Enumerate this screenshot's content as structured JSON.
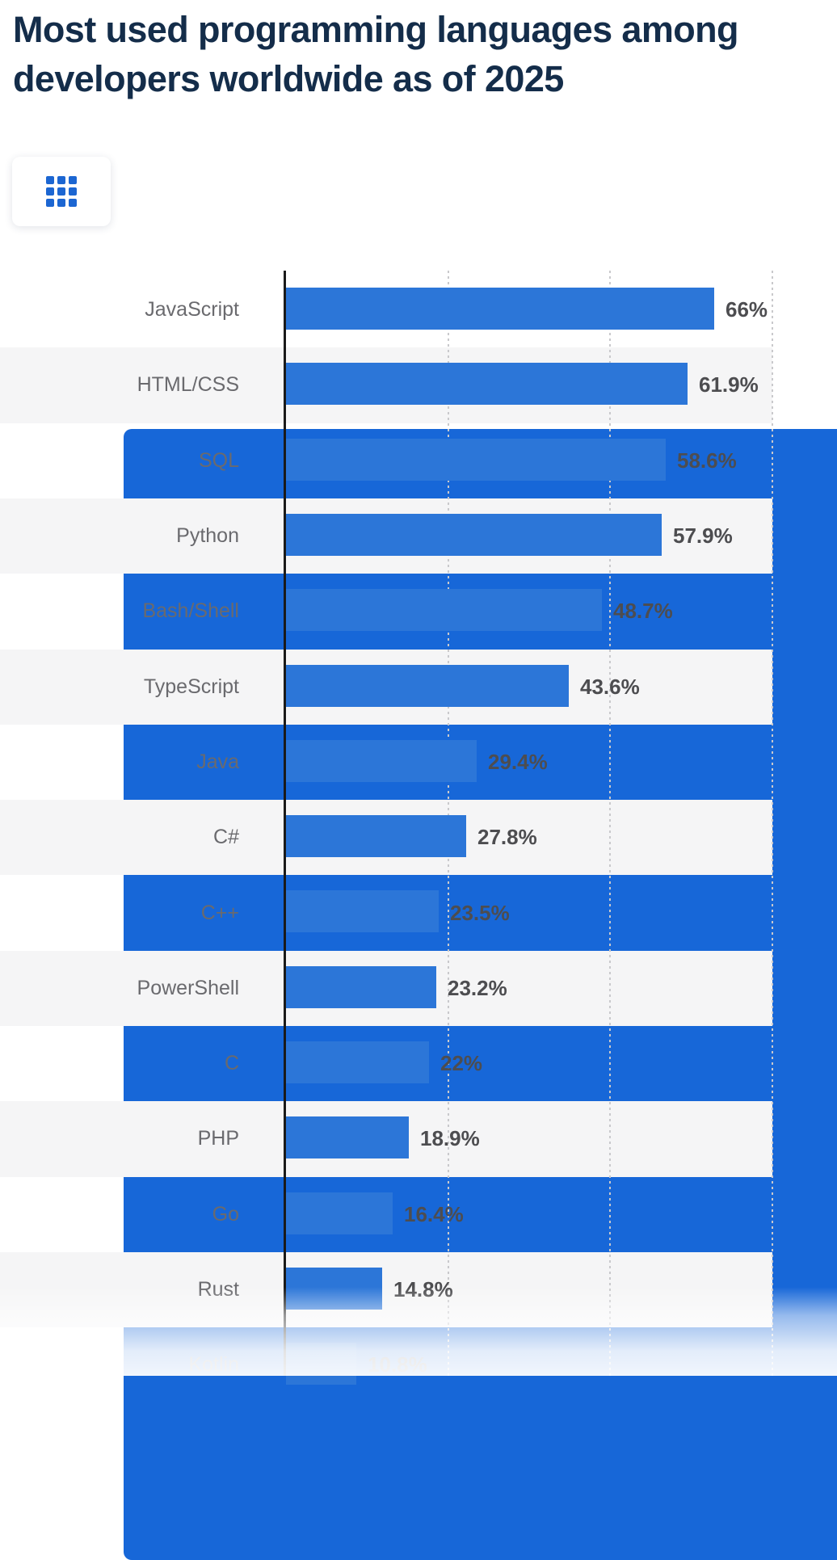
{
  "page": {
    "title": "Most used programming languages among developers worldwide as of 2025"
  },
  "toolbar": {
    "table_view_button": {
      "icon": "grid-icon",
      "active": false
    },
    "chart_view_button": {
      "icon": "bar-chart-icon",
      "active": true
    }
  },
  "chart_data": {
    "type": "bar",
    "orientation": "horizontal",
    "title": "Most used programming languages among developers worldwide as of 2025",
    "categories": [
      "JavaScript",
      "HTML/CSS",
      "SQL",
      "Python",
      "Bash/Shell",
      "TypeScript",
      "Java",
      "C#",
      "C++",
      "PowerShell",
      "C",
      "PHP",
      "Go",
      "Rust",
      "Kotlin"
    ],
    "values": [
      66,
      61.9,
      58.6,
      57.9,
      48.7,
      43.6,
      29.4,
      27.8,
      23.5,
      23.2,
      22,
      18.9,
      16.4,
      14.8,
      10.8
    ],
    "value_labels": [
      "66%",
      "61.9%",
      "58.6%",
      "57.9%",
      "48.7%",
      "43.6%",
      "29.4%",
      "27.8%",
      "23.5%",
      "23.2%",
      "22%",
      "18.9%",
      "16.4%",
      "14.8%",
      "10.8%"
    ],
    "unit": "%",
    "xlim": [
      0,
      75
    ],
    "gridlines_percent": [
      25,
      50,
      75
    ],
    "gridline_style": "dotted",
    "zebra_striping": true,
    "last_row_faded": true,
    "legend": "none"
  },
  "colors": {
    "bar_blue": "#2c76d8",
    "button_blue": "#1767d8",
    "grid_icon_blue": "#1c66d2",
    "title_navy": "#142d4a",
    "category_label_gray": "#6a6a6e",
    "value_label_gray": "#4d4d50",
    "band_gray": "#f5f5f6",
    "gridline_gray": "#c9c9cc",
    "axis_black": "#1a1a1a",
    "background": "#ffffff"
  }
}
